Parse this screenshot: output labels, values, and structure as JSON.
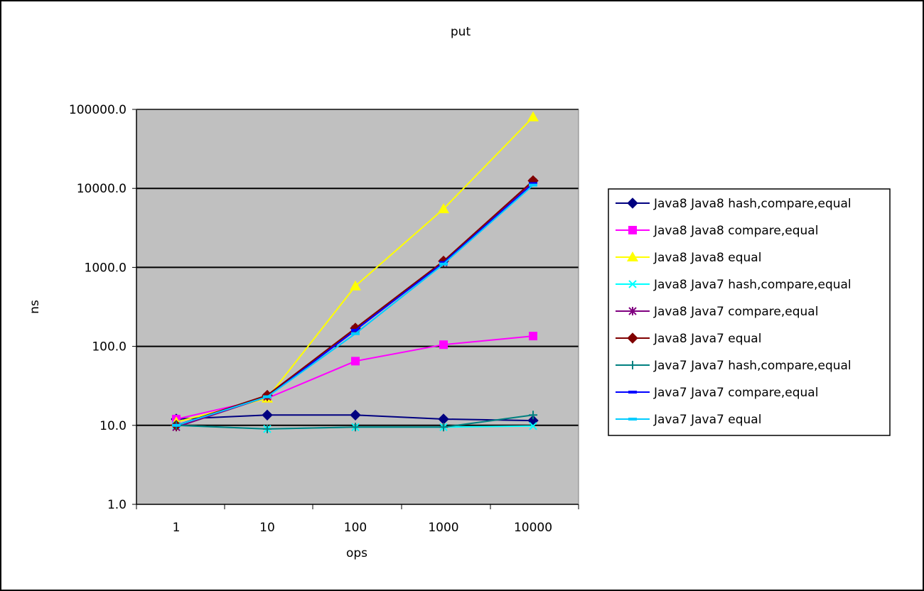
{
  "chart_data": {
    "type": "line",
    "title": "put",
    "xlabel": "ops",
    "ylabel": "ns",
    "y_scale": "log",
    "ylim": [
      1.0,
      100000.0
    ],
    "y_ticks": [
      "1.0",
      "10.0",
      "100.0",
      "1000.0",
      "10000.0",
      "100000.0"
    ],
    "x_scale": "log",
    "x_ticks": [
      "1",
      "10",
      "100",
      "1000",
      "10000"
    ],
    "x": [
      1,
      10,
      100,
      1000,
      10000
    ],
    "grid": true,
    "legend_position": "right",
    "plot_background": "#c0c0c0",
    "series": [
      {
        "name": "Java8 Java8 hash,compare,equal",
        "color": "#000080",
        "marker": "diamond",
        "values": [
          12.0,
          13.5,
          13.5,
          12.0,
          11.5
        ]
      },
      {
        "name": "Java8 Java8 compare,equal",
        "color": "#ff00ff",
        "marker": "square",
        "values": [
          12.0,
          22.0,
          65.0,
          105.0,
          135.0
        ]
      },
      {
        "name": "Java8 Java8 equal",
        "color": "#ffff00",
        "marker": "triangle",
        "values": [
          11.0,
          22.0,
          580.0,
          5500.0,
          80000.0
        ]
      },
      {
        "name": "Java8 Java7 hash,compare,equal",
        "color": "#00ffff",
        "marker": "x",
        "values": [
          10.0,
          9.0,
          9.5,
          9.5,
          9.8
        ]
      },
      {
        "name": "Java8 Java7 compare,equal",
        "color": "#800080",
        "marker": "asterisk",
        "values": [
          9.5,
          23.0,
          165.0,
          1150.0,
          12000.0
        ]
      },
      {
        "name": "Java8 Java7 equal",
        "color": "#800000",
        "marker": "diamond",
        "values": [
          10.0,
          24.0,
          170.0,
          1200.0,
          12500.0
        ]
      },
      {
        "name": "Java7 Java7 hash,compare,equal",
        "color": "#008080",
        "marker": "plus",
        "values": [
          10.0,
          9.0,
          9.5,
          9.5,
          13.5
        ]
      },
      {
        "name": "Java7 Java7 compare,equal",
        "color": "#0000ff",
        "marker": "dash",
        "values": [
          10.0,
          23.0,
          160.0,
          1150.0,
          11500.0
        ]
      },
      {
        "name": "Java7 Java7 equal",
        "color": "#00ccff",
        "marker": "dash",
        "values": [
          10.0,
          23.0,
          145.0,
          1100.0,
          11000.0
        ]
      }
    ]
  }
}
